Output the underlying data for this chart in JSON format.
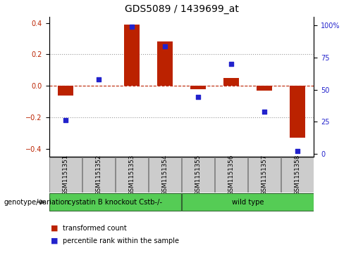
{
  "title": "GDS5089 / 1439699_at",
  "samples": [
    "GSM1151351",
    "GSM1151352",
    "GSM1151353",
    "GSM1151354",
    "GSM1151355",
    "GSM1151356",
    "GSM1151357",
    "GSM1151358"
  ],
  "transformed_count": [
    -0.06,
    0.0,
    0.39,
    0.28,
    -0.02,
    0.05,
    -0.03,
    -0.33
  ],
  "percentile_rank": [
    26,
    58,
    99,
    84,
    44,
    70,
    33,
    2
  ],
  "group1_label": "cystatin B knockout Cstb-/-",
  "group2_label": "wild type",
  "group1_indices": [
    0,
    1,
    2,
    3
  ],
  "group2_indices": [
    4,
    5,
    6,
    7
  ],
  "green_color": "#55cc55",
  "bar_color": "#bb2200",
  "dot_color": "#2222cc",
  "ylim_left": [
    -0.45,
    0.44
  ],
  "ylim_right": [
    -2.5,
    107
  ],
  "yticks_left": [
    -0.4,
    -0.2,
    0.0,
    0.2,
    0.4
  ],
  "yticks_right": [
    0,
    25,
    50,
    75,
    100
  ],
  "legend_bar_label": "transformed count",
  "legend_dot_label": "percentile rank within the sample",
  "genotype_label": "genotype/variation",
  "background_color": "#ffffff",
  "title_fontsize": 10,
  "tick_fontsize": 7,
  "label_fontsize": 7.5,
  "sample_box_color": "#cccccc",
  "sample_box_edge": "#888888"
}
